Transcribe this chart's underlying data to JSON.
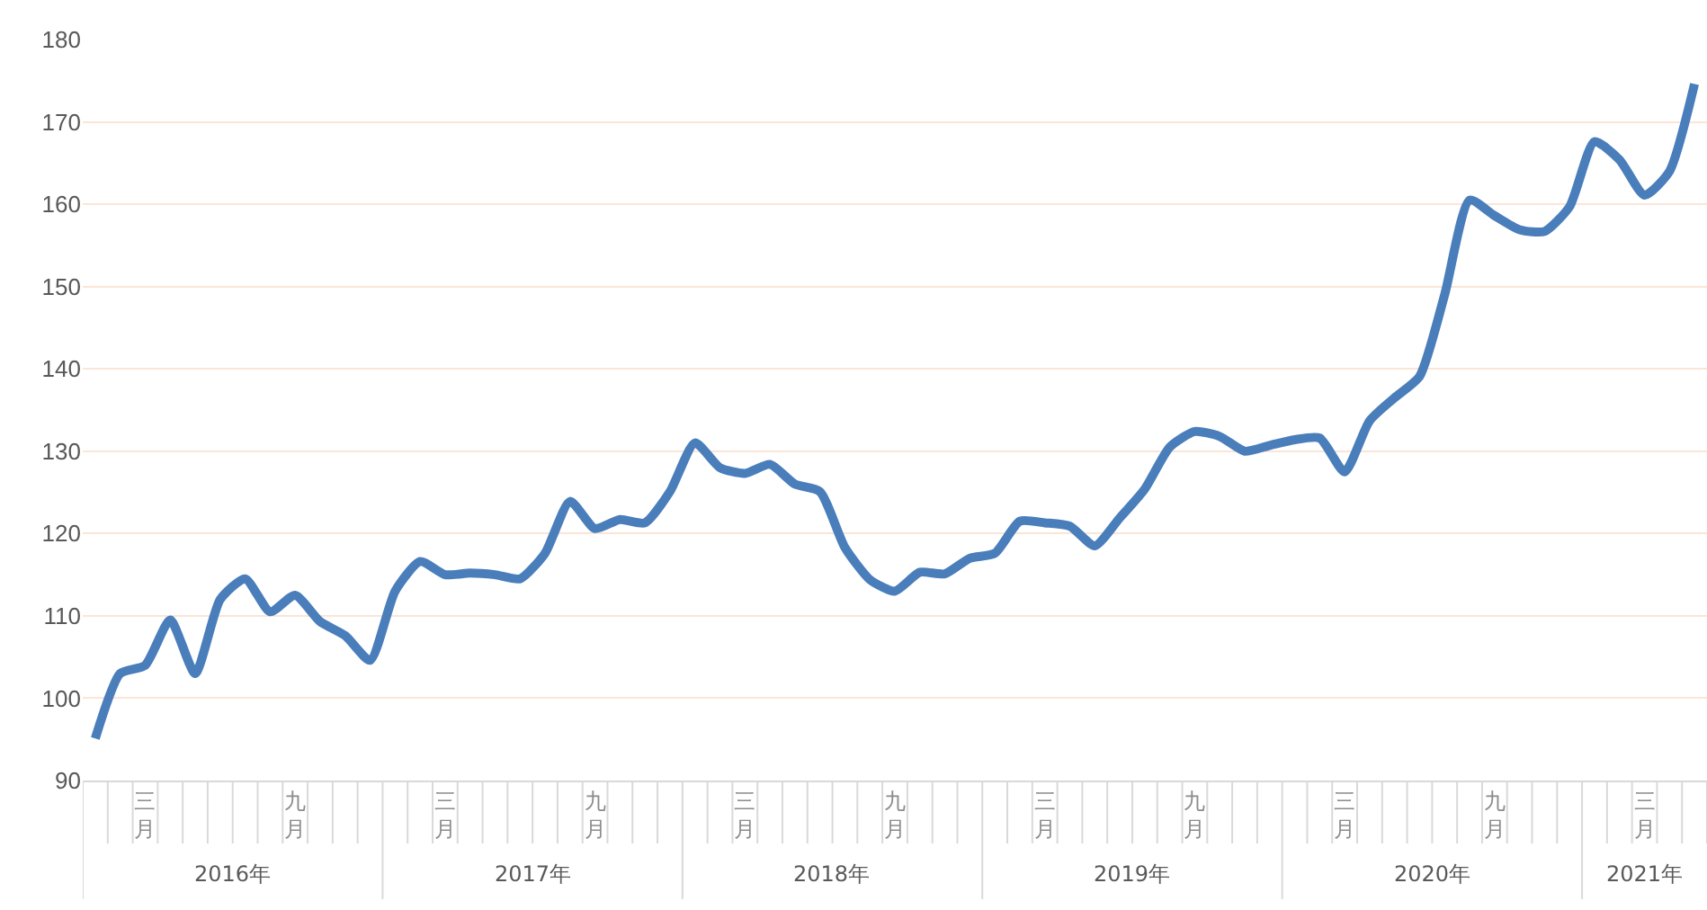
{
  "chart_data": {
    "type": "line",
    "categories": [
      null,
      null,
      "三月",
      null,
      null,
      null,
      null,
      null,
      "九月",
      null,
      null,
      null,
      null,
      null,
      "三月",
      null,
      null,
      null,
      null,
      null,
      "九月",
      null,
      null,
      null,
      null,
      null,
      "三月",
      null,
      null,
      null,
      null,
      null,
      "九月",
      null,
      null,
      null,
      null,
      null,
      "三月",
      null,
      null,
      null,
      null,
      null,
      "九月",
      null,
      null,
      null,
      null,
      null,
      "三月",
      null,
      null,
      null,
      null,
      null,
      "九月",
      null,
      null,
      null,
      null,
      null,
      "三月",
      null,
      null
    ],
    "series": [
      {
        "color": "#4a7ebb",
        "values": [
          95.1,
          103,
          104,
          109.5,
          103,
          112,
          114.5,
          110.5,
          112.5,
          109.3,
          107.6,
          104.6,
          113,
          116.6,
          115,
          115.2,
          115,
          114.5,
          117.6,
          123.9,
          120.6,
          121.7,
          121.3,
          125.1,
          131,
          128,
          127.3,
          128.4,
          126,
          125.1,
          118.3,
          114.4,
          113,
          115.3,
          115.1,
          117,
          117.6,
          121.5,
          121.3,
          120.9,
          118.5,
          121.9,
          125.4,
          130.5,
          132.4,
          131.8,
          130,
          130.7,
          131.4,
          131.6,
          127.5,
          133.7,
          136.5,
          139.1,
          149,
          160.5,
          158.6,
          156.9,
          156.7,
          159.7,
          167.6,
          165.4,
          161.1,
          164,
          174.6
        ]
      }
    ],
    "annotations": [
      "2016年",
      "2017年",
      "2018年",
      "2019年",
      "2020年",
      "2021年"
    ],
    "ylim": [
      90,
      180
    ],
    "yticks": [
      90,
      100,
      110,
      120,
      130,
      140,
      150,
      160,
      170,
      180
    ],
    "grid": "y",
    "line_style": "solid",
    "marker": "none"
  }
}
